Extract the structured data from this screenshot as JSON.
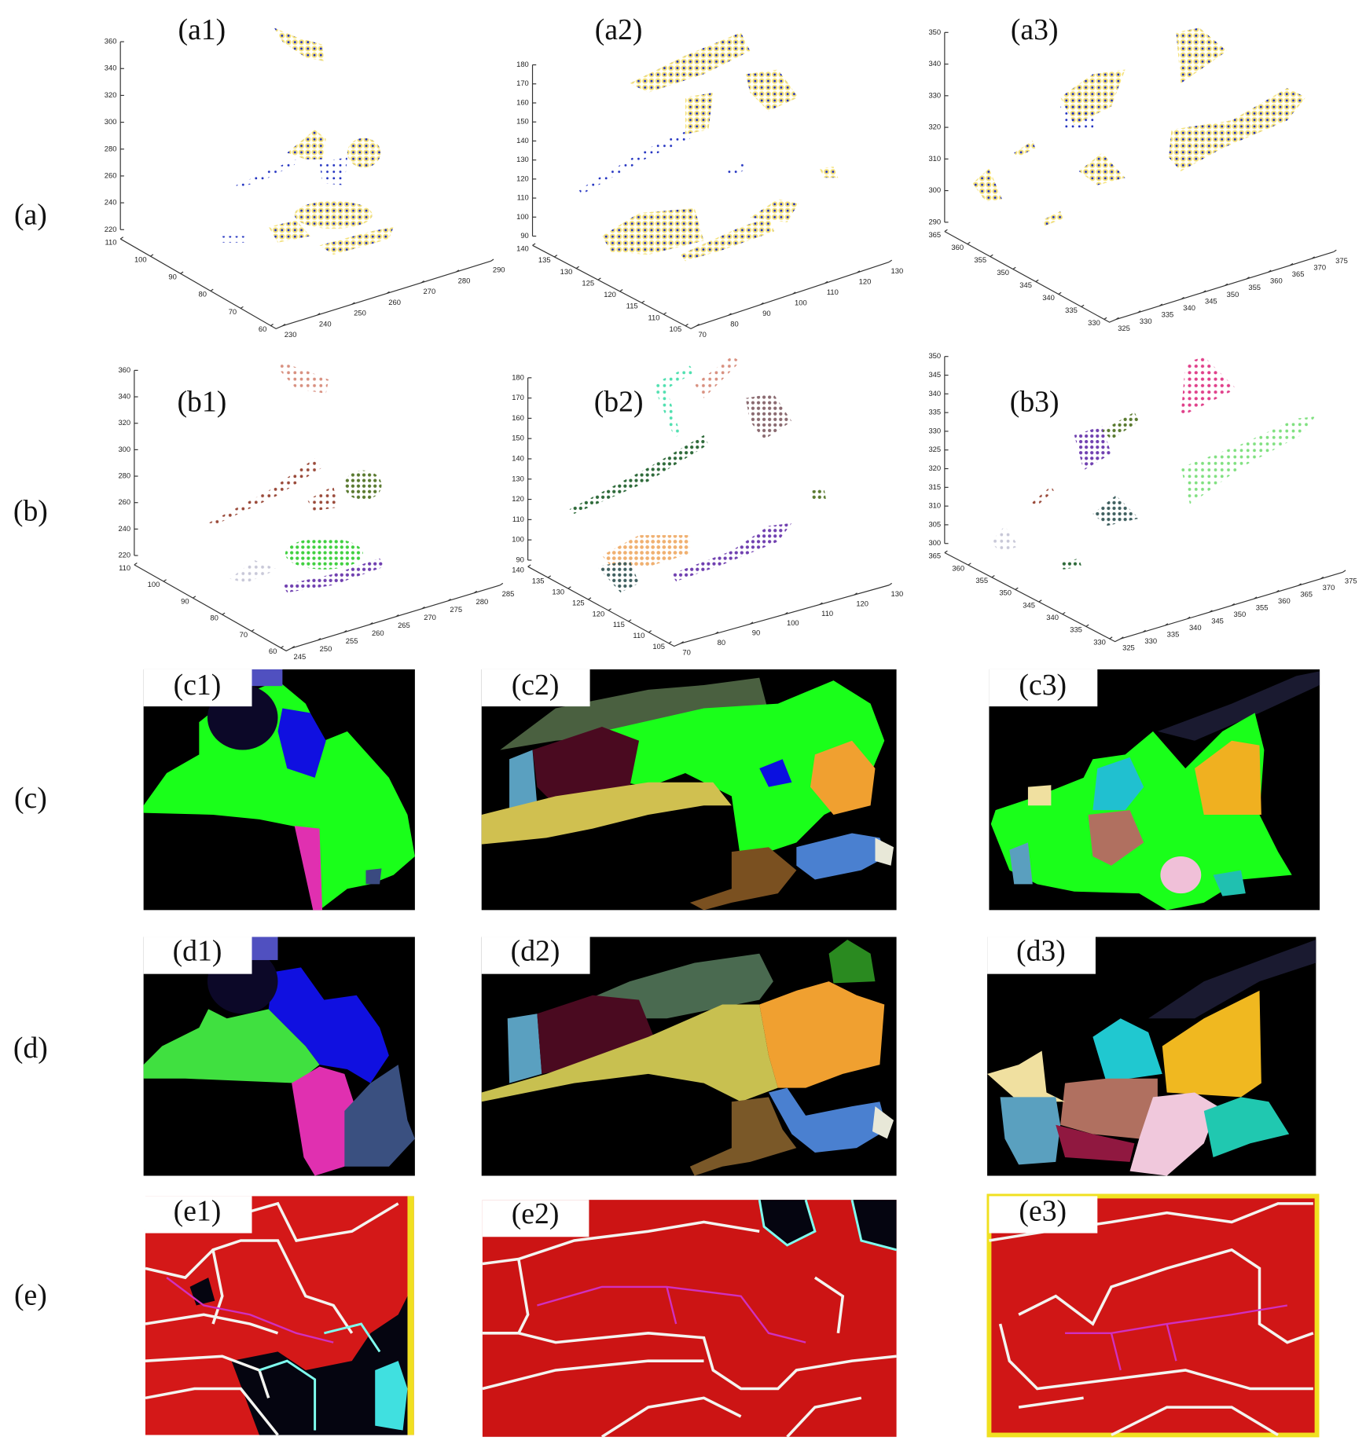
{
  "row_labels": [
    "(a)",
    "(b)",
    "(c)",
    "(d)",
    "(e)"
  ],
  "panels": {
    "a": [
      {
        "label": "(a1)",
        "z_ticks": [
          220,
          240,
          260,
          280,
          300,
          320,
          340,
          360
        ],
        "left_ticks": [
          110,
          100,
          90,
          80,
          70,
          60
        ],
        "right_ticks": [
          230,
          240,
          250,
          260,
          270,
          280,
          290
        ]
      },
      {
        "label": "(a2)",
        "z_ticks": [
          90,
          100,
          110,
          120,
          130,
          140,
          150,
          160,
          170,
          180
        ],
        "left_ticks": [
          140,
          135,
          130,
          125,
          120,
          115,
          110,
          105
        ],
        "right_ticks": [
          70,
          80,
          90,
          100,
          110,
          120,
          130
        ]
      },
      {
        "label": "(a3)",
        "z_ticks": [
          290,
          300,
          310,
          320,
          330,
          340,
          350
        ],
        "left_ticks": [
          365,
          360,
          355,
          350,
          345,
          340,
          335,
          330
        ],
        "right_ticks": [
          325,
          330,
          335,
          340,
          345,
          350,
          355,
          360,
          365,
          370,
          375
        ]
      }
    ],
    "b": [
      {
        "label": "(b1)",
        "z_ticks": [
          220,
          240,
          260,
          280,
          300,
          320,
          340,
          360
        ],
        "left_ticks": [
          110,
          100,
          90,
          80,
          70,
          60
        ],
        "right_ticks": [
          245,
          250,
          255,
          260,
          265,
          270,
          275,
          280,
          285
        ]
      },
      {
        "label": "(b2)",
        "z_ticks": [
          90,
          100,
          110,
          120,
          130,
          140,
          150,
          160,
          170,
          180
        ],
        "left_ticks": [
          140,
          135,
          130,
          125,
          120,
          115,
          110,
          105
        ],
        "right_ticks": [
          70,
          80,
          90,
          100,
          110,
          120,
          130
        ]
      },
      {
        "label": "(b3)",
        "z_ticks": [
          300,
          305,
          310,
          315,
          320,
          325,
          330,
          335,
          340,
          345,
          350
        ],
        "left_ticks": [
          365,
          360,
          355,
          350,
          345,
          340,
          335,
          330
        ],
        "right_ticks": [
          325,
          330,
          335,
          340,
          345,
          350,
          355,
          360,
          365,
          370,
          375
        ]
      }
    ],
    "c": [
      {
        "label": "(c1)"
      },
      {
        "label": "(c2)"
      },
      {
        "label": "(c3)"
      }
    ],
    "d": [
      {
        "label": "(d1)"
      },
      {
        "label": "(d2)"
      },
      {
        "label": "(d3)"
      }
    ],
    "e": [
      {
        "label": "(e1)"
      },
      {
        "label": "(e2)"
      },
      {
        "label": "(e3)"
      }
    ]
  }
}
